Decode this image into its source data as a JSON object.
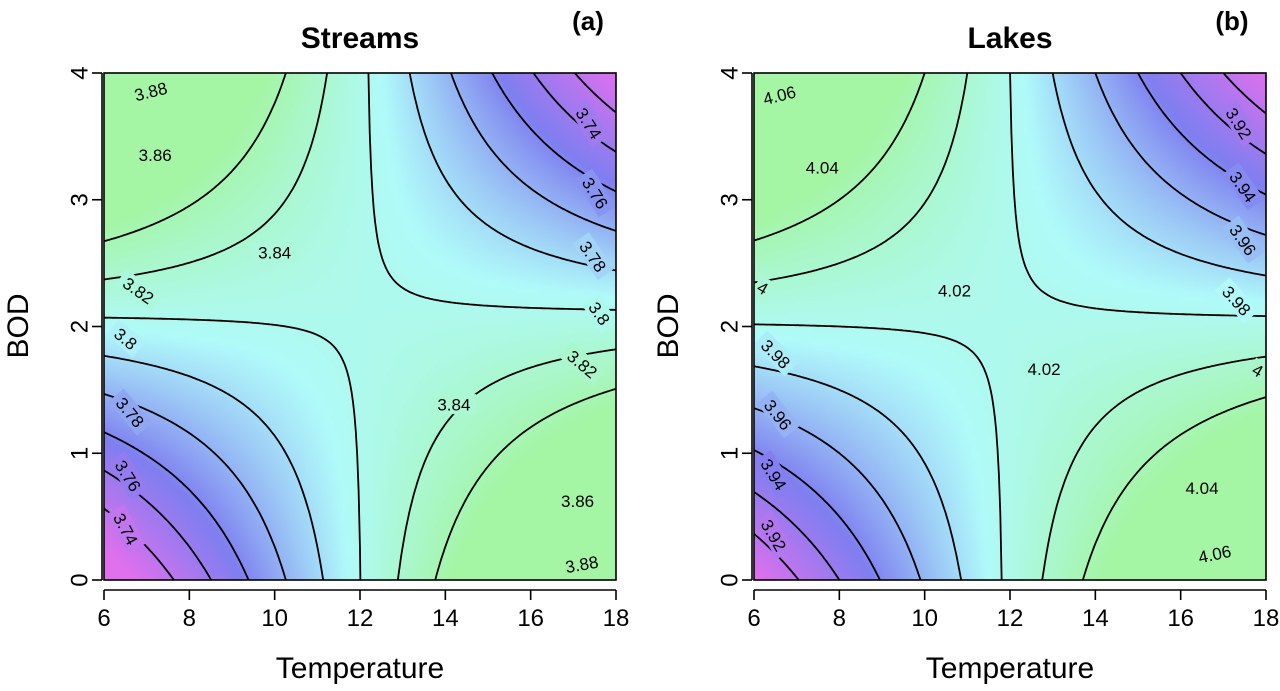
{
  "chart_data": [
    {
      "type": "heatmap",
      "subtype": "contour",
      "panel_label": "(a)",
      "title": "Streams",
      "xlabel": "Temperature",
      "ylabel": "BOD",
      "xlim": [
        6,
        18
      ],
      "ylim": [
        0,
        4
      ],
      "xticks": [
        6,
        8,
        10,
        12,
        14,
        16,
        18
      ],
      "yticks": [
        0,
        1,
        2,
        3,
        4
      ],
      "saddle": {
        "x": 12.1,
        "y": 2.1,
        "value": 3.842
      },
      "value_range": [
        3.72,
        3.89
      ],
      "color_scale": [
        "#e070ee",
        "#7f7ff0",
        "#b0fafa",
        "#a4f5a4"
      ],
      "contours": [
        {
          "level": 3.88,
          "label": "3.88"
        },
        {
          "level": 3.86,
          "label": "3.86"
        },
        {
          "level": 3.84,
          "label": "3.84"
        },
        {
          "level": 3.82,
          "label": "3.82"
        },
        {
          "level": 3.8,
          "label": "3.8"
        },
        {
          "level": 3.78,
          "label": "3.78"
        },
        {
          "level": 3.76,
          "label": "3.76"
        },
        {
          "level": 3.74,
          "label": "3.74"
        }
      ],
      "contour_labels": [
        {
          "text": "3.88",
          "x": 7.1,
          "y": 3.85,
          "angle": -14
        },
        {
          "text": "3.86",
          "x": 7.2,
          "y": 3.35,
          "angle": 0
        },
        {
          "text": "3.84",
          "x": 10.0,
          "y": 2.58,
          "angle": 0
        },
        {
          "text": "3.82",
          "x": 6.8,
          "y": 2.28,
          "angle": 35
        },
        {
          "text": "3.8",
          "x": 6.5,
          "y": 1.9,
          "angle": 40
        },
        {
          "text": "3.78",
          "x": 6.6,
          "y": 1.32,
          "angle": 50
        },
        {
          "text": "3.76",
          "x": 6.55,
          "y": 0.82,
          "angle": 58
        },
        {
          "text": "3.74",
          "x": 6.5,
          "y": 0.4,
          "angle": 62
        },
        {
          "text": "3.84",
          "x": 14.2,
          "y": 1.38,
          "angle": 0
        },
        {
          "text": "3.86",
          "x": 17.1,
          "y": 0.62,
          "angle": 0
        },
        {
          "text": "3.88",
          "x": 17.2,
          "y": 0.12,
          "angle": -10
        },
        {
          "text": "3.74",
          "x": 17.35,
          "y": 3.6,
          "angle": 58
        },
        {
          "text": "3.76",
          "x": 17.5,
          "y": 3.05,
          "angle": 58
        },
        {
          "text": "3.78",
          "x": 17.45,
          "y": 2.55,
          "angle": 55
        },
        {
          "text": "3.8",
          "x": 17.6,
          "y": 2.1,
          "angle": 55
        },
        {
          "text": "3.82",
          "x": 17.2,
          "y": 1.7,
          "angle": 40
        }
      ]
    },
    {
      "type": "heatmap",
      "subtype": "contour",
      "panel_label": "(b)",
      "title": "Lakes",
      "xlabel": "Temperature",
      "ylabel": "BOD",
      "xlim": [
        6,
        18
      ],
      "ylim": [
        0,
        4
      ],
      "xticks": [
        6,
        8,
        10,
        12,
        14,
        16,
        18
      ],
      "yticks": [
        0,
        1,
        2,
        3,
        4
      ],
      "saddle": {
        "x": 11.9,
        "y": 2.05,
        "value": 4.022
      },
      "value_range": [
        3.9,
        4.07
      ],
      "color_scale": [
        "#e070ee",
        "#7f7ff0",
        "#b0fafa",
        "#a4f5a4"
      ],
      "contours": [
        {
          "level": 4.06,
          "label": "4.06"
        },
        {
          "level": 4.04,
          "label": "4.04"
        },
        {
          "level": 4.02,
          "label": "4.02"
        },
        {
          "level": 4.0,
          "label": "4"
        },
        {
          "level": 3.98,
          "label": "3.98"
        },
        {
          "level": 3.96,
          "label": "3.96"
        },
        {
          "level": 3.94,
          "label": "3.94"
        },
        {
          "level": 3.92,
          "label": "3.92"
        }
      ],
      "contour_labels": [
        {
          "text": "4.06",
          "x": 6.6,
          "y": 3.82,
          "angle": -14
        },
        {
          "text": "4.04",
          "x": 7.6,
          "y": 3.25,
          "angle": 0
        },
        {
          "text": "4.02",
          "x": 10.7,
          "y": 2.28,
          "angle": 0
        },
        {
          "text": "4",
          "x": 6.2,
          "y": 2.3,
          "angle": 30
        },
        {
          "text": "3.98",
          "x": 6.5,
          "y": 1.78,
          "angle": 45
        },
        {
          "text": "3.96",
          "x": 6.55,
          "y": 1.3,
          "angle": 52
        },
        {
          "text": "3.94",
          "x": 6.45,
          "y": 0.83,
          "angle": 58
        },
        {
          "text": "3.92",
          "x": 6.45,
          "y": 0.35,
          "angle": 60
        },
        {
          "text": "4.02",
          "x": 12.8,
          "y": 1.66,
          "angle": 0
        },
        {
          "text": "4.04",
          "x": 16.5,
          "y": 0.72,
          "angle": 0
        },
        {
          "text": "4.06",
          "x": 16.8,
          "y": 0.2,
          "angle": -12
        },
        {
          "text": "3.92",
          "x": 17.35,
          "y": 3.6,
          "angle": 58
        },
        {
          "text": "3.94",
          "x": 17.45,
          "y": 3.1,
          "angle": 55
        },
        {
          "text": "3.96",
          "x": 17.45,
          "y": 2.68,
          "angle": 55
        },
        {
          "text": "3.98",
          "x": 17.3,
          "y": 2.2,
          "angle": 48
        },
        {
          "text": "4",
          "x": 17.8,
          "y": 1.65,
          "angle": 30
        }
      ]
    }
  ]
}
